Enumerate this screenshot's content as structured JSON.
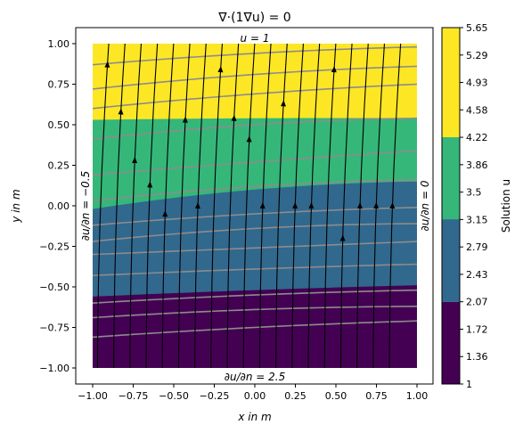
{
  "chart_data": {
    "type": "heatmap",
    "title": "∇·(1∇u) = 0",
    "xlabel": "x in m",
    "ylabel": "y in m",
    "xlim": [
      -1,
      1
    ],
    "ylim": [
      -1,
      1
    ],
    "x_ticks": [
      -1.0,
      -0.75,
      -0.5,
      -0.25,
      0.0,
      0.25,
      0.5,
      0.75,
      1.0
    ],
    "x_tick_labels": [
      "−1.00",
      "−0.75",
      "−0.50",
      "−0.25",
      "0.00",
      "0.25",
      "0.50",
      "0.75",
      "1.00"
    ],
    "y_ticks": [
      1.0,
      0.75,
      0.5,
      0.25,
      0.0,
      -0.25,
      -0.5,
      -0.75,
      -1.0
    ],
    "y_tick_labels": [
      "1.00",
      "0.75",
      "0.50",
      "0.25",
      "0.00",
      "−0.25",
      "−0.50",
      "−0.75",
      "−1.00"
    ],
    "boundary_labels": {
      "top": "u = 1",
      "bottom": "∂u/∂n = 2.5",
      "left": "∂u/∂n = −0.5",
      "right": "∂u/∂n = 0"
    },
    "colorbar": {
      "label": "Solution u",
      "ticks": [
        "1",
        "1.36",
        "1.72",
        "2.07",
        "2.43",
        "2.79",
        "3.15",
        "3.5",
        "3.86",
        "4.22",
        "4.58",
        "4.93",
        "5.29",
        "5.65"
      ],
      "levels": [
        1.0,
        2.07,
        3.15,
        4.22,
        5.65
      ],
      "colors": [
        "#440154",
        "#31688e",
        "#35b779",
        "#fde725"
      ]
    },
    "filled_regions": [
      {
        "range": [
          1.0,
          2.07
        ],
        "color": "#440154",
        "upper_boundary_y": [
          -0.56,
          -0.52,
          -0.49
        ]
      },
      {
        "range": [
          2.07,
          3.15
        ],
        "color": "#31688e",
        "upper_boundary_y": [
          -0.02,
          0.1,
          0.15
        ]
      },
      {
        "range": [
          3.15,
          4.22
        ],
        "color": "#35b779",
        "upper_boundary_y": [
          0.53,
          0.54,
          0.54
        ]
      },
      {
        "range": [
          4.22,
          5.65
        ],
        "color": "#fde725",
        "upper_boundary_y": [
          1.0,
          1.0,
          1.0
        ]
      }
    ],
    "boundary_shape_x": [
      -1.0,
      0.0,
      1.0
    ],
    "contour_lines_y_at_x": {
      "x": [
        -1.0,
        0.0,
        1.0
      ],
      "lines": [
        [
          0.87,
          0.94,
          0.98
        ],
        [
          0.72,
          0.81,
          0.86
        ],
        [
          0.6,
          0.69,
          0.75
        ],
        [
          0.41,
          0.5,
          0.54
        ],
        [
          0.19,
          0.27,
          0.34
        ],
        [
          0.03,
          0.12,
          0.16
        ],
        [
          -0.12,
          -0.05,
          -0.01
        ],
        [
          -0.22,
          -0.14,
          -0.11
        ],
        [
          -0.3,
          -0.26,
          -0.22
        ],
        [
          -0.43,
          -0.39,
          -0.36
        ],
        [
          -0.6,
          -0.55,
          -0.52
        ],
        [
          -0.69,
          -0.64,
          -0.62
        ],
        [
          -0.81,
          -0.75,
          -0.71
        ]
      ],
      "color": "#8c8c8c"
    },
    "streamlines": {
      "count": 19,
      "x_bottom": [
        -0.97,
        -0.87,
        -0.77,
        -0.67,
        -0.57,
        -0.47,
        -0.37,
        -0.27,
        -0.17,
        -0.07,
        0.03,
        0.13,
        0.23,
        0.33,
        0.43,
        0.53,
        0.63,
        0.73,
        0.83
      ],
      "x_top": [
        -0.9,
        -0.8,
        -0.7,
        -0.6,
        -0.5,
        -0.4,
        -0.3,
        -0.2,
        -0.1,
        0.0,
        0.1,
        0.2,
        0.3,
        0.4,
        0.5,
        0.6,
        0.7,
        0.8,
        0.9
      ],
      "arrow_y": [
        0.87,
        0.58,
        0.28,
        0.13,
        -0.05,
        0.53,
        0.0,
        0.84,
        0.54,
        0.41,
        0.0,
        0.63,
        0.0,
        0.0,
        0.84,
        -0.2,
        0.0,
        0.0,
        0.0
      ],
      "color": "#000000"
    }
  }
}
